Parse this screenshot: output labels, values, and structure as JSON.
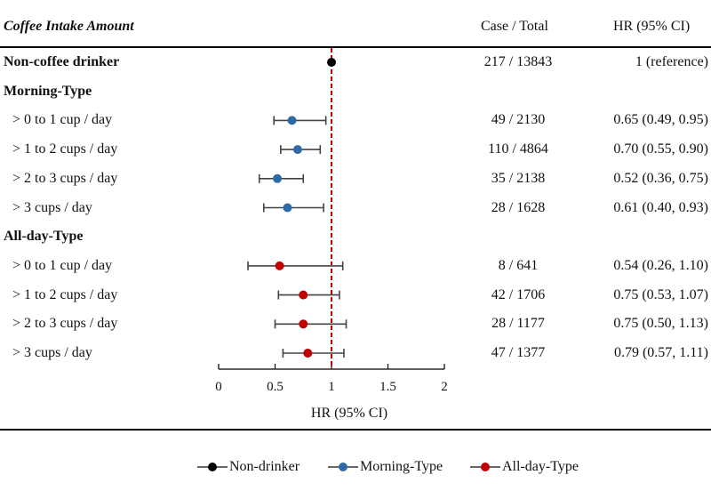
{
  "header": {
    "title": "Coffee Intake Amount",
    "case_total": "Case / Total",
    "hr_ci": "HR (95% CI)"
  },
  "rows": [
    {
      "label": "Non-coffee drinker",
      "kind": "group",
      "case": "217 / 13843",
      "hr_text": "1 (reference)"
    },
    {
      "label": "Morning-Type",
      "kind": "group",
      "case": "",
      "hr_text": ""
    },
    {
      "label": "> 0 to 1 cup / day",
      "kind": "sub",
      "case": "49 / 2130",
      "hr_text": "0.65 (0.49, 0.95)"
    },
    {
      "label": "> 1 to 2 cups / day",
      "kind": "sub",
      "case": "110 / 4864",
      "hr_text": "0.70 (0.55, 0.90)"
    },
    {
      "label": "> 2 to 3 cups / day",
      "kind": "sub",
      "case": "35 / 2138",
      "hr_text": "0.52 (0.36, 0.75)"
    },
    {
      "label": "> 3 cups / day",
      "kind": "sub",
      "case": "28 / 1628",
      "hr_text": "0.61 (0.40, 0.93)"
    },
    {
      "label": "All-day-Type",
      "kind": "group",
      "case": "",
      "hr_text": ""
    },
    {
      "label": "> 0 to 1 cup / day",
      "kind": "sub",
      "case": "8 / 641",
      "hr_text": "0.54 (0.26, 1.10)"
    },
    {
      "label": "> 1 to 2 cups / day",
      "kind": "sub",
      "case": "42 / 1706",
      "hr_text": "0.75 (0.53, 1.07)"
    },
    {
      "label": "> 2 to 3 cups / day",
      "kind": "sub",
      "case": "28 / 1177",
      "hr_text": "0.75 (0.50, 1.13)"
    },
    {
      "label": "> 3 cups / day",
      "kind": "sub",
      "case": "47 / 1377",
      "hr_text": "0.79 (0.57, 1.11)"
    }
  ],
  "chart_data": {
    "type": "scatter",
    "subtype": "forest-plot",
    "xlabel": "HR (95% CI)",
    "xlim": [
      0,
      2
    ],
    "xticks": [
      "0",
      "0.5",
      "1",
      "1.5",
      "2"
    ],
    "xtick_values": [
      0,
      0.5,
      1,
      1.5,
      2
    ],
    "reference_line": 1,
    "reference_color": "#c00000",
    "points": [
      {
        "row": 0,
        "series": "Non-drinker",
        "hr": 1.0,
        "lo": null,
        "hi": null
      },
      {
        "row": 2,
        "series": "Morning-Type",
        "hr": 0.65,
        "lo": 0.49,
        "hi": 0.95
      },
      {
        "row": 3,
        "series": "Morning-Type",
        "hr": 0.7,
        "lo": 0.55,
        "hi": 0.9
      },
      {
        "row": 4,
        "series": "Morning-Type",
        "hr": 0.52,
        "lo": 0.36,
        "hi": 0.75
      },
      {
        "row": 5,
        "series": "Morning-Type",
        "hr": 0.61,
        "lo": 0.4,
        "hi": 0.93
      },
      {
        "row": 7,
        "series": "All-day-Type",
        "hr": 0.54,
        "lo": 0.26,
        "hi": 1.1
      },
      {
        "row": 8,
        "series": "All-day-Type",
        "hr": 0.75,
        "lo": 0.53,
        "hi": 1.07
      },
      {
        "row": 9,
        "series": "All-day-Type",
        "hr": 0.75,
        "lo": 0.5,
        "hi": 1.13
      },
      {
        "row": 10,
        "series": "All-day-Type",
        "hr": 0.79,
        "lo": 0.57,
        "hi": 1.11
      }
    ],
    "series": [
      {
        "name": "Non-drinker",
        "color": "#000000"
      },
      {
        "name": "Morning-Type",
        "color": "#2e6aa6"
      },
      {
        "name": "All-day-Type",
        "color": "#c00000"
      }
    ],
    "legend_position": "bottom"
  }
}
